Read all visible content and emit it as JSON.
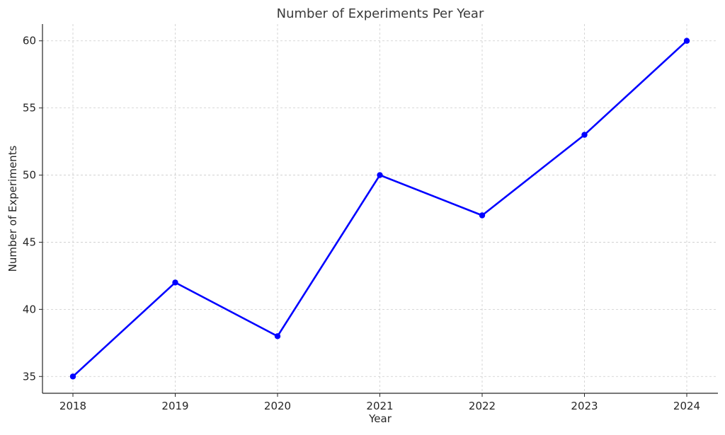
{
  "chart_data": {
    "type": "line",
    "title": "Number of Experiments Per Year",
    "xlabel": "Year",
    "ylabel": "Number of Experiments",
    "x": [
      "2018",
      "2019",
      "2020",
      "2021",
      "2022",
      "2023",
      "2024"
    ],
    "series": [
      {
        "values": [
          35,
          42,
          38,
          50,
          47,
          53,
          60
        ],
        "color": "#0000ff",
        "marker": "circle"
      }
    ],
    "ylim": [
      33.75,
      61.25
    ],
    "y_ticks": [
      35,
      40,
      45,
      50,
      55,
      60
    ],
    "grid": true,
    "grid_style": "dashed",
    "legend": "none"
  }
}
